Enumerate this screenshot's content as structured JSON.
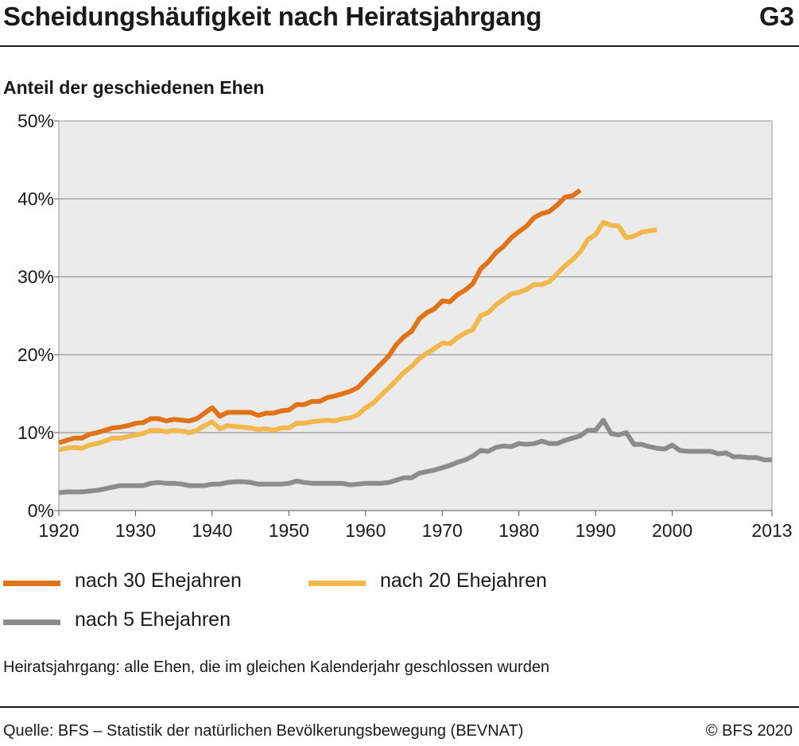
{
  "header": {
    "title": "Scheidungshäufigkeit nach Heiratsjahrgang",
    "code": "G3"
  },
  "footer": {
    "note": "Heiratsjahrgang: alle Ehen, die im gleichen Kalenderjahr geschlossen wurden",
    "source": "Quelle: BFS – Statistik der natürlichen Bevölkerungsbewegung (BEVNAT)",
    "copyright": "© BFS 2020"
  },
  "chart_data": {
    "type": "line",
    "title": "Scheidungshäufigkeit nach Heiratsjahrgang",
    "ylabel": "Anteil der geschiedenen Ehen",
    "xlabel": "",
    "xlim": [
      1920,
      2013
    ],
    "ylim": [
      0,
      50
    ],
    "x_ticks": [
      1920,
      1930,
      1940,
      1950,
      1960,
      1970,
      1980,
      1990,
      2000,
      2013
    ],
    "y_ticks": [
      {
        "value": 0,
        "label": "0%"
      },
      {
        "value": 10,
        "label": "10%"
      },
      {
        "value": 20,
        "label": "20%"
      },
      {
        "value": 30,
        "label": "30%"
      },
      {
        "value": 40,
        "label": "40%"
      },
      {
        "value": 50,
        "label": "50%"
      }
    ],
    "grid": "horizontal",
    "legend_position": "bottom",
    "series": [
      {
        "name": "nach 30 Ehejahren",
        "color": "#e07318",
        "x": [
          1920,
          1921,
          1922,
          1923,
          1924,
          1925,
          1926,
          1927,
          1928,
          1929,
          1930,
          1931,
          1932,
          1933,
          1934,
          1935,
          1936,
          1937,
          1938,
          1939,
          1940,
          1941,
          1942,
          1943,
          1944,
          1945,
          1946,
          1947,
          1948,
          1949,
          1950,
          1951,
          1952,
          1953,
          1954,
          1955,
          1956,
          1957,
          1958,
          1959,
          1960,
          1961,
          1962,
          1963,
          1964,
          1965,
          1966,
          1967,
          1968,
          1969,
          1970,
          1971,
          1972,
          1973,
          1974,
          1975,
          1976,
          1977,
          1978,
          1979,
          1980,
          1981,
          1982,
          1983,
          1984,
          1985,
          1986,
          1987,
          1988
        ],
        "values": [
          8.7,
          9.0,
          9.3,
          9.3,
          9.8,
          10.0,
          10.3,
          10.6,
          10.7,
          10.9,
          11.2,
          11.3,
          11.8,
          11.8,
          11.5,
          11.7,
          11.6,
          11.5,
          11.8,
          12.5,
          13.2,
          12.1,
          12.6,
          12.6,
          12.6,
          12.6,
          12.2,
          12.5,
          12.5,
          12.8,
          12.9,
          13.6,
          13.6,
          14.0,
          14.0,
          14.5,
          14.7,
          15.0,
          15.3,
          15.8,
          16.8,
          17.8,
          18.8,
          19.8,
          21.3,
          22.3,
          23.0,
          24.6,
          25.4,
          25.9,
          26.9,
          26.8,
          27.7,
          28.3,
          29.1,
          31.0,
          31.9,
          33.1,
          33.9,
          35.0,
          35.8,
          36.5,
          37.6,
          38.1,
          38.4,
          39.2,
          40.2,
          40.4,
          41.1
        ]
      },
      {
        "name": "nach 20 Ehejahren",
        "color": "#f2b84b",
        "x": [
          1920,
          1921,
          1922,
          1923,
          1924,
          1925,
          1926,
          1927,
          1928,
          1929,
          1930,
          1931,
          1932,
          1933,
          1934,
          1935,
          1936,
          1937,
          1938,
          1939,
          1940,
          1941,
          1942,
          1943,
          1944,
          1945,
          1946,
          1947,
          1948,
          1949,
          1950,
          1951,
          1952,
          1953,
          1954,
          1955,
          1956,
          1957,
          1958,
          1959,
          1960,
          1961,
          1962,
          1963,
          1964,
          1965,
          1966,
          1967,
          1968,
          1969,
          1970,
          1971,
          1972,
          1973,
          1974,
          1975,
          1976,
          1977,
          1978,
          1979,
          1980,
          1981,
          1982,
          1983,
          1984,
          1985,
          1986,
          1987,
          1988,
          1989,
          1990,
          1991,
          1992,
          1993,
          1994,
          1995,
          1996,
          1997,
          1998
        ],
        "values": [
          7.8,
          8.0,
          8.1,
          8.0,
          8.4,
          8.6,
          8.9,
          9.3,
          9.3,
          9.5,
          9.7,
          9.9,
          10.3,
          10.3,
          10.1,
          10.3,
          10.2,
          10.0,
          10.3,
          10.9,
          11.4,
          10.5,
          10.9,
          10.8,
          10.7,
          10.6,
          10.4,
          10.5,
          10.3,
          10.6,
          10.6,
          11.2,
          11.2,
          11.4,
          11.5,
          11.6,
          11.5,
          11.8,
          11.9,
          12.3,
          13.2,
          13.8,
          14.8,
          15.7,
          16.7,
          17.7,
          18.5,
          19.5,
          20.2,
          20.8,
          21.5,
          21.4,
          22.2,
          22.8,
          23.2,
          25.0,
          25.4,
          26.4,
          27.1,
          27.8,
          28.0,
          28.4,
          29.0,
          29.0,
          29.4,
          30.4,
          31.4,
          32.2,
          33.2,
          34.8,
          35.4,
          37.0,
          36.6,
          36.5,
          35.0,
          35.2,
          35.7,
          35.9,
          36.0
        ]
      },
      {
        "name": "nach 5 Ehejahren",
        "color": "#8c8c8c",
        "x": [
          1920,
          1921,
          1922,
          1923,
          1924,
          1925,
          1926,
          1927,
          1928,
          1929,
          1930,
          1931,
          1932,
          1933,
          1934,
          1935,
          1936,
          1937,
          1938,
          1939,
          1940,
          1941,
          1942,
          1943,
          1944,
          1945,
          1946,
          1947,
          1948,
          1949,
          1950,
          1951,
          1952,
          1953,
          1954,
          1955,
          1956,
          1957,
          1958,
          1959,
          1960,
          1961,
          1962,
          1963,
          1964,
          1965,
          1966,
          1967,
          1968,
          1969,
          1970,
          1971,
          1972,
          1973,
          1974,
          1975,
          1976,
          1977,
          1978,
          1979,
          1980,
          1981,
          1982,
          1983,
          1984,
          1985,
          1986,
          1987,
          1988,
          1989,
          1990,
          1991,
          1992,
          1993,
          1994,
          1995,
          1996,
          1997,
          1998,
          1999,
          2000,
          2001,
          2002,
          2003,
          2004,
          2005,
          2006,
          2007,
          2008,
          2009,
          2010,
          2011,
          2012,
          2013
        ],
        "values": [
          2.3,
          2.4,
          2.4,
          2.4,
          2.5,
          2.6,
          2.8,
          3.0,
          3.2,
          3.2,
          3.2,
          3.2,
          3.5,
          3.6,
          3.5,
          3.5,
          3.4,
          3.2,
          3.2,
          3.2,
          3.4,
          3.4,
          3.6,
          3.7,
          3.7,
          3.6,
          3.4,
          3.4,
          3.4,
          3.4,
          3.5,
          3.8,
          3.6,
          3.5,
          3.5,
          3.5,
          3.5,
          3.5,
          3.3,
          3.4,
          3.5,
          3.5,
          3.5,
          3.6,
          3.9,
          4.2,
          4.2,
          4.8,
          5.0,
          5.2,
          5.5,
          5.8,
          6.2,
          6.5,
          7.0,
          7.7,
          7.6,
          8.1,
          8.3,
          8.2,
          8.6,
          8.5,
          8.6,
          8.9,
          8.6,
          8.6,
          9.0,
          9.3,
          9.6,
          10.3,
          10.3,
          11.6,
          9.9,
          9.7,
          10.0,
          8.5,
          8.5,
          8.2,
          8.0,
          7.9,
          8.4,
          7.7,
          7.6,
          7.6,
          7.6,
          7.6,
          7.3,
          7.4,
          6.9,
          6.9,
          6.8,
          6.8,
          6.5,
          6.5
        ]
      }
    ]
  }
}
